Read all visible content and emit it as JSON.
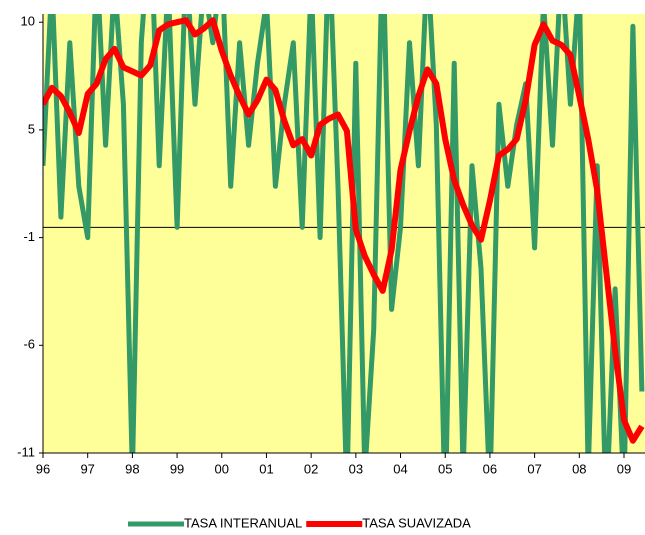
{
  "chart_data": {
    "type": "line",
    "x": [
      1996,
      1996.2,
      1996.4,
      1996.6,
      1996.8,
      1997,
      1997.2,
      1997.4,
      1997.6,
      1997.8,
      1998,
      1998.2,
      1998.4,
      1998.6,
      1998.8,
      1999,
      1999.2,
      1999.4,
      1999.6,
      1999.8,
      2000,
      2000.2,
      2000.4,
      2000.6,
      2000.8,
      2001,
      2001.2,
      2001.4,
      2001.6,
      2001.8,
      2002,
      2002.2,
      2002.4,
      2002.6,
      2002.8,
      2003,
      2003.2,
      2003.4,
      2003.6,
      2003.8,
      2004,
      2004.2,
      2004.4,
      2004.6,
      2004.8,
      2005,
      2005.2,
      2005.4,
      2005.6,
      2005.8,
      2006,
      2006.2,
      2006.4,
      2006.6,
      2006.8,
      2007,
      2007.2,
      2007.4,
      2007.6,
      2007.8,
      2008,
      2008.2,
      2008.4,
      2008.6,
      2008.8,
      2009,
      2009.2,
      2009.4
    ],
    "series": [
      {
        "name": "TASA INTERANUAL",
        "color": "#339966",
        "width": 5,
        "values": [
          3,
          12,
          0.5,
          9,
          2,
          -0.5,
          13,
          4,
          12,
          6,
          -12,
          9,
          15,
          3,
          12,
          0,
          13,
          6,
          12,
          9,
          13,
          2,
          9,
          4,
          8,
          11,
          2,
          6,
          9,
          0,
          12,
          -0.5,
          14,
          2,
          -13,
          8,
          -12,
          -5,
          14,
          -4,
          0,
          9,
          3,
          13,
          5,
          -14,
          8,
          -12,
          3,
          -2,
          -13,
          6,
          2,
          5,
          7,
          -1,
          11,
          4,
          13,
          6,
          12,
          -12,
          3,
          -14,
          -3,
          -13,
          9.8,
          -8
        ]
      },
      {
        "name": "TASA SUAVIZADA",
        "color": "#ff0000",
        "width": 6,
        "values": [
          6.0,
          6.8,
          6.4,
          5.6,
          4.6,
          6.5,
          7.0,
          8.2,
          8.7,
          7.8,
          7.6,
          7.4,
          7.9,
          9.6,
          9.9,
          10.0,
          10.1,
          9.4,
          9.7,
          10.1,
          8.6,
          7.4,
          6.4,
          5.5,
          6.2,
          7.2,
          6.7,
          5.2,
          4.0,
          4.3,
          3.5,
          5.0,
          5.3,
          5.5,
          4.7,
          -0.1,
          -1.4,
          -2.3,
          -3.1,
          -1.1,
          2.8,
          4.7,
          6.4,
          7.7,
          7.0,
          4.3,
          2.3,
          1.1,
          0.1,
          -0.6,
          1.3,
          3.5,
          3.8,
          4.3,
          6.2,
          8.9,
          9.9,
          9.1,
          8.9,
          8.4,
          6.4,
          4.3,
          1.8,
          -2.1,
          -6.0,
          -9.4,
          -10.4,
          -9.7
        ]
      }
    ],
    "xlim": [
      1996,
      2009.47
    ],
    "xticks": [
      {
        "value": 1996,
        "label": "96"
      },
      {
        "value": 1997,
        "label": "97"
      },
      {
        "value": 1998,
        "label": "98"
      },
      {
        "value": 1999,
        "label": "99"
      },
      {
        "value": 2000,
        "label": "00"
      },
      {
        "value": 2001,
        "label": "01"
      },
      {
        "value": 2002,
        "label": "02"
      },
      {
        "value": 2003,
        "label": "03"
      },
      {
        "value": 2004,
        "label": "04"
      },
      {
        "value": 2005,
        "label": "05"
      },
      {
        "value": 2006,
        "label": "06"
      },
      {
        "value": 2007,
        "label": "07"
      },
      {
        "value": 2008,
        "label": "08"
      },
      {
        "value": 2009,
        "label": "09"
      }
    ],
    "ylim": [
      -11,
      10.4
    ],
    "yticks": [
      -11,
      {
        "value": -5.75,
        "label": "-6"
      },
      {
        "value": -0.5,
        "label": "-1"
      },
      {
        "value": 4.75,
        "label": "5"
      },
      10
    ],
    "hline": 0,
    "plot_background": "#ffff99",
    "legend": "bottom"
  }
}
